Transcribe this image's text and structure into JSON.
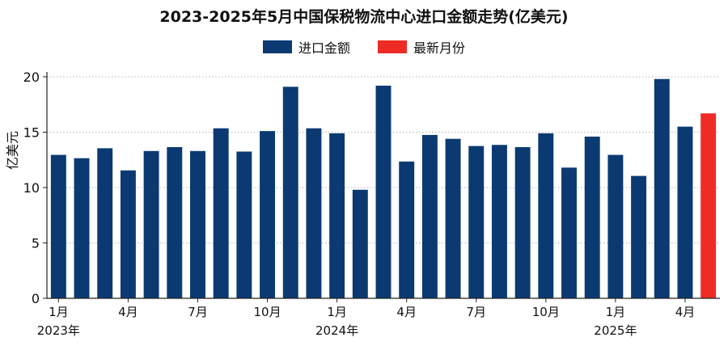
{
  "chart_data": {
    "type": "bar",
    "title": "2023-2025年5月中国保税物流中心进口金额走势(亿美元)",
    "ylabel": "亿美元",
    "xlabel": "",
    "ylim": [
      0,
      20
    ],
    "yticks": [
      "0",
      "5",
      "10",
      "15",
      "20"
    ],
    "grid": "horizontal-dotted",
    "legend_position": "top-center",
    "colors": {
      "main": "#0b3a72",
      "latest": "#ee2c25"
    },
    "legend": [
      "进口金额",
      "最新月份"
    ],
    "categories": [
      "2023-01",
      "2023-02",
      "2023-03",
      "2023-04",
      "2023-05",
      "2023-06",
      "2023-07",
      "2023-08",
      "2023-09",
      "2023-10",
      "2023-11",
      "2023-12",
      "2024-01",
      "2024-02",
      "2024-03",
      "2024-04",
      "2024-05",
      "2024-06",
      "2024-07",
      "2024-08",
      "2024-09",
      "2024-10",
      "2024-11",
      "2024-12",
      "2025-01",
      "2025-02",
      "2025-03",
      "2025-04",
      "2025-05"
    ],
    "values": [
      12.95,
      12.65,
      13.55,
      11.55,
      13.3,
      13.65,
      13.3,
      15.35,
      13.25,
      15.1,
      19.1,
      15.35,
      14.9,
      9.8,
      19.2,
      12.35,
      14.75,
      14.4,
      13.75,
      13.85,
      13.65,
      14.9,
      11.8,
      14.6,
      12.95,
      11.05,
      19.8,
      15.5,
      16.7
    ],
    "series_index": [
      0,
      0,
      0,
      0,
      0,
      0,
      0,
      0,
      0,
      0,
      0,
      0,
      0,
      0,
      0,
      0,
      0,
      0,
      0,
      0,
      0,
      0,
      0,
      0,
      0,
      0,
      0,
      0,
      1
    ],
    "month_ticks": [
      {
        "index": 0,
        "label": "1月"
      },
      {
        "index": 3,
        "label": "4月"
      },
      {
        "index": 6,
        "label": "7月"
      },
      {
        "index": 9,
        "label": "10月"
      },
      {
        "index": 12,
        "label": "1月"
      },
      {
        "index": 15,
        "label": "4月"
      },
      {
        "index": 18,
        "label": "7月"
      },
      {
        "index": 21,
        "label": "10月"
      },
      {
        "index": 24,
        "label": "1月"
      },
      {
        "index": 27,
        "label": "4月"
      }
    ],
    "year_ticks": [
      {
        "index": 0,
        "label": "2023年"
      },
      {
        "index": 12,
        "label": "2024年"
      },
      {
        "index": 24,
        "label": "2025年"
      }
    ]
  }
}
